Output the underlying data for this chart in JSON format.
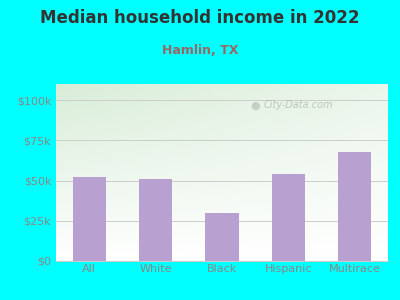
{
  "title": "Median household income in 2022",
  "subtitle": "Hamlin, TX",
  "categories": [
    "All",
    "White",
    "Black",
    "Hispanic",
    "Multirace"
  ],
  "values": [
    52000,
    51000,
    30000,
    54000,
    68000
  ],
  "bar_color": "#b8a0d0",
  "background_color": "#00FFFF",
  "plot_bg_color_topleft": "#d8edd8",
  "plot_bg_color_topright": "#ffffff",
  "plot_bg_color_bottom": "#ffffff",
  "title_color": "#333333",
  "subtitle_color": "#996666",
  "ylabel_ticks": [
    0,
    25000,
    50000,
    75000,
    100000
  ],
  "ylabel_labels": [
    "$0",
    "$25k",
    "$50k",
    "$75k",
    "$100k"
  ],
  "ylim": [
    0,
    110000
  ],
  "watermark": "City-Data.com",
  "title_fontsize": 12,
  "subtitle_fontsize": 9,
  "tick_fontsize": 8,
  "axis_label_color": "#888888",
  "grid_color": "#cccccc",
  "bar_width": 0.5
}
